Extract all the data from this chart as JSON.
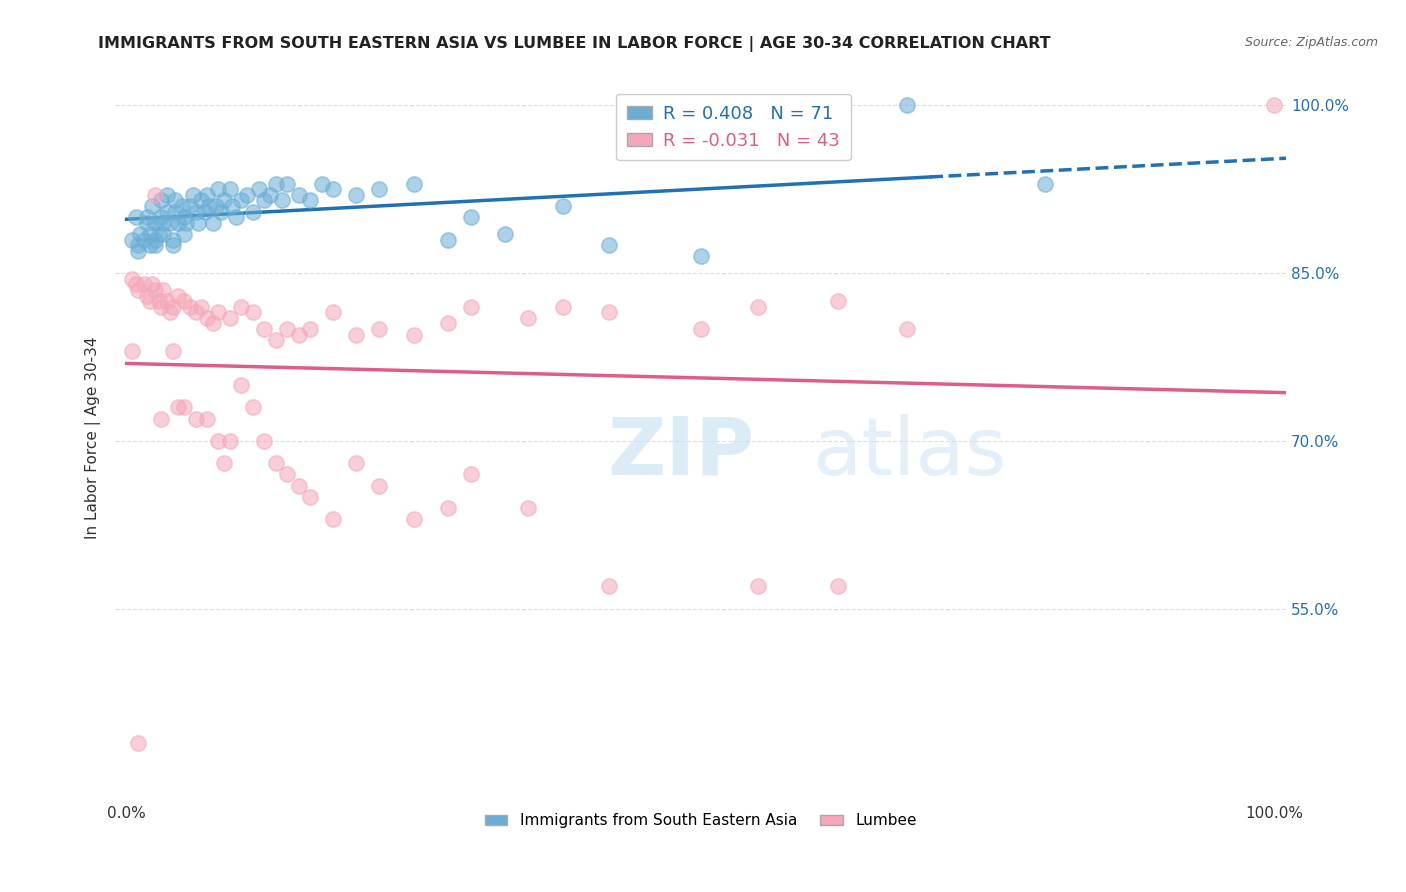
{
  "title": "IMMIGRANTS FROM SOUTH EASTERN ASIA VS LUMBEE IN LABOR FORCE | AGE 30-34 CORRELATION CHART",
  "source": "Source: ZipAtlas.com",
  "ylabel": "In Labor Force | Age 30-34",
  "blue_R": 0.408,
  "blue_N": 71,
  "pink_R": -0.031,
  "pink_N": 43,
  "blue_color": "#6aaed6",
  "pink_color": "#f4a7b9",
  "trend_blue_color": "#2171b5",
  "trend_pink_color": "#e05c8a",
  "legend_label_blue": "Immigrants from South Eastern Asia",
  "legend_label_pink": "Lumbee",
  "xmin": -0.01,
  "xmax": 1.01,
  "ymin": 0.38,
  "ymax": 1.025,
  "ytick_vals": [
    1.0,
    0.85,
    0.7,
    0.55
  ],
  "ytick_labels": [
    "100.0%",
    "85.0%",
    "70.0%",
    "55.0%"
  ],
  "blue_scatter_x": [
    0.005,
    0.008,
    0.01,
    0.01,
    0.012,
    0.015,
    0.018,
    0.018,
    0.02,
    0.02,
    0.022,
    0.025,
    0.025,
    0.025,
    0.028,
    0.03,
    0.03,
    0.032,
    0.032,
    0.035,
    0.035,
    0.038,
    0.04,
    0.04,
    0.042,
    0.042,
    0.045,
    0.048,
    0.05,
    0.05,
    0.052,
    0.055,
    0.058,
    0.06,
    0.062,
    0.065,
    0.068,
    0.07,
    0.072,
    0.075,
    0.078,
    0.08,
    0.082,
    0.085,
    0.09,
    0.092,
    0.095,
    0.1,
    0.105,
    0.11,
    0.115,
    0.12,
    0.125,
    0.13,
    0.135,
    0.14,
    0.15,
    0.16,
    0.17,
    0.18,
    0.2,
    0.22,
    0.25,
    0.28,
    0.3,
    0.33,
    0.38,
    0.42,
    0.5,
    0.68,
    0.8
  ],
  "blue_scatter_y": [
    0.88,
    0.9,
    0.875,
    0.87,
    0.885,
    0.88,
    0.895,
    0.9,
    0.885,
    0.875,
    0.91,
    0.895,
    0.88,
    0.875,
    0.885,
    0.915,
    0.9,
    0.895,
    0.885,
    0.92,
    0.905,
    0.895,
    0.88,
    0.875,
    0.915,
    0.905,
    0.895,
    0.91,
    0.9,
    0.885,
    0.895,
    0.91,
    0.92,
    0.905,
    0.895,
    0.915,
    0.905,
    0.92,
    0.91,
    0.895,
    0.91,
    0.925,
    0.905,
    0.915,
    0.925,
    0.91,
    0.9,
    0.915,
    0.92,
    0.905,
    0.925,
    0.915,
    0.92,
    0.93,
    0.915,
    0.93,
    0.92,
    0.915,
    0.93,
    0.925,
    0.92,
    0.925,
    0.93,
    0.88,
    0.9,
    0.885,
    0.91,
    0.875,
    0.865,
    1.0,
    0.93
  ],
  "pink_scatter_x": [
    0.005,
    0.008,
    0.01,
    0.015,
    0.018,
    0.02,
    0.022,
    0.025,
    0.028,
    0.03,
    0.032,
    0.035,
    0.038,
    0.04,
    0.045,
    0.05,
    0.055,
    0.06,
    0.065,
    0.07,
    0.075,
    0.08,
    0.09,
    0.1,
    0.11,
    0.12,
    0.13,
    0.14,
    0.15,
    0.16,
    0.18,
    0.2,
    0.22,
    0.25,
    0.28,
    0.3,
    0.35,
    0.38,
    0.42,
    0.5,
    0.55,
    0.62,
    0.68
  ],
  "pink_scatter_y": [
    0.845,
    0.84,
    0.835,
    0.84,
    0.83,
    0.825,
    0.84,
    0.835,
    0.825,
    0.82,
    0.835,
    0.825,
    0.815,
    0.82,
    0.83,
    0.825,
    0.82,
    0.815,
    0.82,
    0.81,
    0.805,
    0.815,
    0.81,
    0.82,
    0.815,
    0.8,
    0.79,
    0.8,
    0.795,
    0.8,
    0.815,
    0.795,
    0.8,
    0.795,
    0.805,
    0.82,
    0.81,
    0.82,
    0.815,
    0.8,
    0.82,
    0.825,
    0.8
  ],
  "pink_outlier_x": [
    0.005,
    0.01,
    0.025,
    0.03,
    0.04,
    0.045,
    0.05,
    0.06,
    0.07,
    0.08,
    0.085,
    0.09,
    0.1,
    0.11,
    0.12,
    0.13,
    0.14,
    0.15,
    0.16,
    0.18,
    0.2,
    0.22,
    0.25,
    0.28,
    0.3,
    0.35,
    0.42,
    0.55,
    0.62,
    1.0
  ],
  "pink_outlier_y": [
    0.78,
    0.43,
    0.92,
    0.72,
    0.78,
    0.73,
    0.73,
    0.72,
    0.72,
    0.7,
    0.68,
    0.7,
    0.75,
    0.73,
    0.7,
    0.68,
    0.67,
    0.66,
    0.65,
    0.63,
    0.68,
    0.66,
    0.63,
    0.64,
    0.67,
    0.64,
    0.57,
    0.57,
    0.57,
    1.0
  ]
}
